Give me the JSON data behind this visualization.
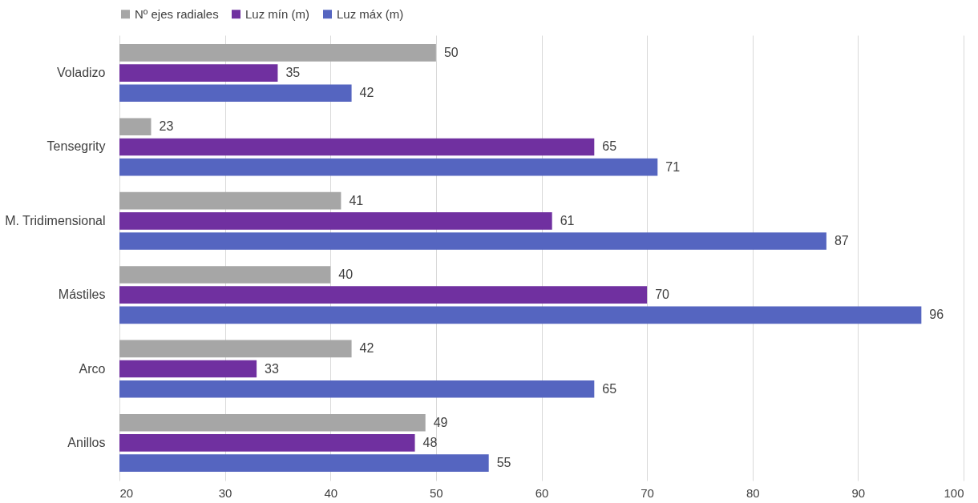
{
  "chart_data": {
    "type": "bar",
    "orientation": "horizontal",
    "categories": [
      "Voladizo",
      "Tensegrity",
      "M. Tridimensional",
      "Mástiles",
      "Arco",
      "Anillos"
    ],
    "series": [
      {
        "name": "Nº ejes radiales",
        "color": "#a6a6a6",
        "values": [
          50,
          23,
          41,
          40,
          42,
          49
        ]
      },
      {
        "name": "Luz mín (m)",
        "color": "#7030a0",
        "values": [
          35,
          65,
          61,
          70,
          33,
          48
        ]
      },
      {
        "name": "Luz máx (m)",
        "color": "#5565c0",
        "values": [
          42,
          71,
          87,
          96,
          65,
          55
        ]
      }
    ],
    "xlim": [
      20,
      100
    ],
    "xticks": [
      20,
      30,
      40,
      50,
      60,
      70,
      80,
      90,
      100
    ],
    "grid": "x",
    "legend": "top",
    "data_labels": true
  }
}
